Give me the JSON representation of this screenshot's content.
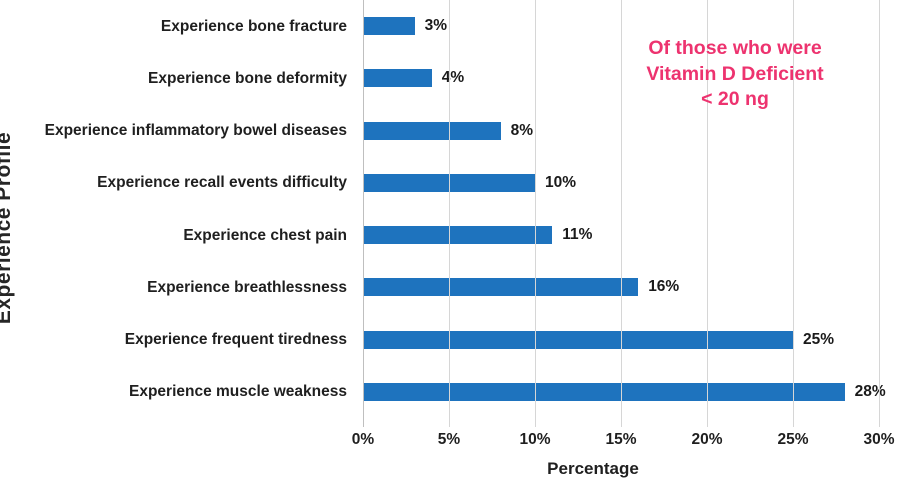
{
  "chart_data": {
    "type": "bar",
    "orientation": "horizontal",
    "categories": [
      "Experience bone fracture",
      "Experience bone deformity",
      "Experience inflammatory bowel diseases",
      "Experience recall events difficulty",
      "Experience chest pain",
      "Experience breathlessness",
      "Experience frequent tiredness",
      "Experience muscle weakness"
    ],
    "values": [
      3,
      4,
      8,
      10,
      11,
      16,
      25,
      28
    ],
    "value_labels": [
      "3%",
      "4%",
      "8%",
      "10%",
      "11%",
      "16%",
      "25%",
      "28%"
    ],
    "xlabel": "Percentage",
    "ylabel": "Experience Profile",
    "xlim": [
      0,
      30
    ],
    "xticks": [
      0,
      5,
      10,
      15,
      20,
      25,
      30
    ],
    "xtick_labels": [
      "0%",
      "5%",
      "10%",
      "15%",
      "20%",
      "25%",
      "30%"
    ],
    "grid": "vertical-gridlines",
    "legend": "none",
    "bar_color": "#1E73BE",
    "gridline_color": "#D6D6D6",
    "annotation": {
      "text": "Of those who were\nVitamin D Deficient\n< 20 ng",
      "color": "#ED336F"
    }
  }
}
